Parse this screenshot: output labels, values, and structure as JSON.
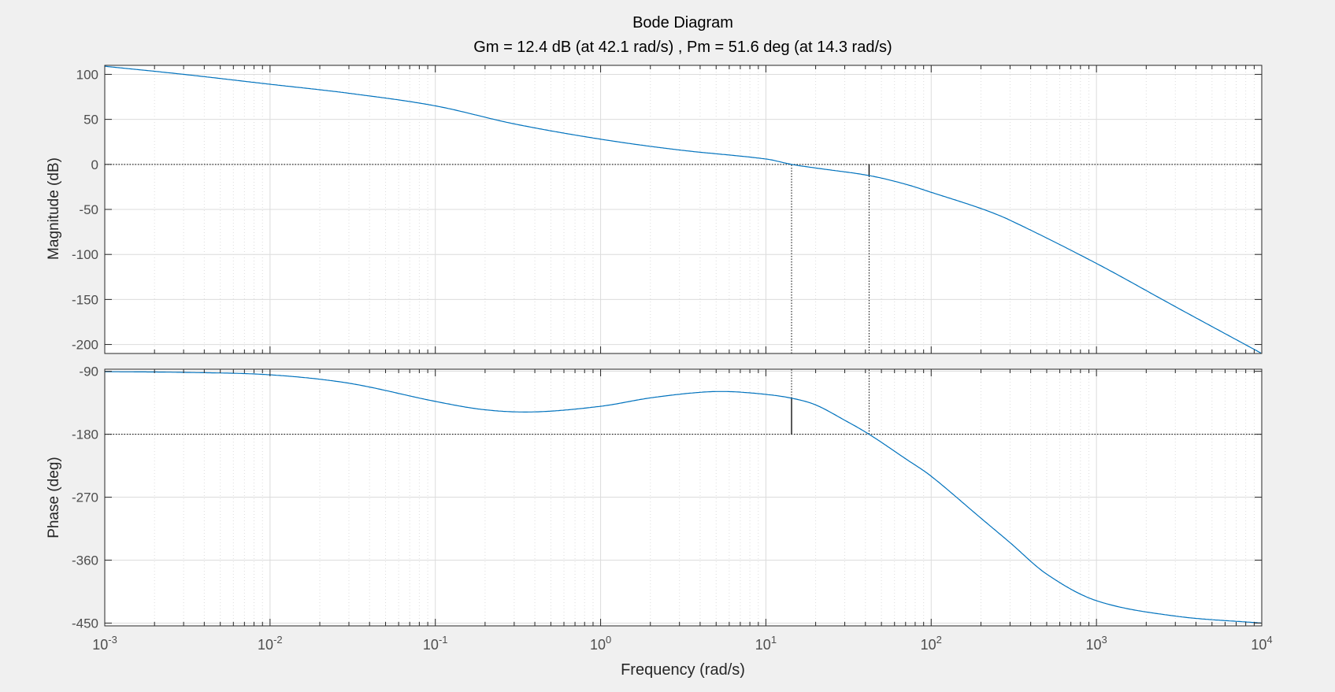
{
  "title": "Bode Diagram",
  "subtitle": "Gm = 12.4 dB (at 42.1 rad/s) ,  Pm = 51.6 deg (at 14.3 rad/s)",
  "colors": {
    "curve": "#0072bd",
    "axis": "#262626",
    "grid": "#dcdcdc",
    "tick_text": "#4d4d4d",
    "background": "#f0f0f0",
    "plot_bg": "#ffffff"
  },
  "chart_data": [
    {
      "type": "line",
      "panel": "magnitude",
      "ylabel": "Magnitude (dB)",
      "xscale": "log",
      "xlim": [
        0.001,
        10000
      ],
      "ylim": [
        -210,
        110
      ],
      "yticks": [
        100,
        50,
        0,
        -50,
        -100,
        -150,
        -200
      ],
      "ytick_labels": [
        "100",
        "50",
        "0",
        "-50",
        "-100",
        "-150",
        "-200"
      ],
      "grid": true,
      "reference_line": {
        "y": 0,
        "style": "dotted"
      },
      "markers": [
        {
          "x": 14.3,
          "from": -210,
          "to": 0,
          "style": "dotted"
        },
        {
          "x": 42.1,
          "from": -12.4,
          "to": 0,
          "style": "solid"
        },
        {
          "x": 42.1,
          "from": -210,
          "to": -12.4,
          "style": "dotted"
        }
      ],
      "series": [
        {
          "x": [
            0.001,
            0.003,
            0.01,
            0.03,
            0.1,
            0.3,
            1,
            3,
            10,
            14.3,
            20,
            42.1,
            70,
            100,
            200,
            300,
            1000,
            3000,
            10000
          ],
          "y": [
            109,
            100,
            89,
            79,
            65,
            45,
            28,
            16,
            6,
            0,
            -4,
            -12.4,
            -22,
            -31,
            -49,
            -62,
            -110,
            -158,
            -210
          ]
        }
      ]
    },
    {
      "type": "line",
      "panel": "phase",
      "ylabel": "Phase (deg)",
      "xlabel": "Frequency  (rad/s)",
      "xscale": "log",
      "xlim": [
        0.001,
        10000
      ],
      "ylim": [
        -454,
        -87
      ],
      "yticks": [
        -90,
        -180,
        -270,
        -360,
        -450
      ],
      "ytick_labels": [
        "-90",
        "-180",
        "-270",
        "-360",
        "-450"
      ],
      "xticks": [
        0.001,
        0.01,
        0.1,
        1,
        10,
        100,
        1000,
        10000
      ],
      "xtick_labels": [
        {
          "base": "10",
          "exp": "-3"
        },
        {
          "base": "10",
          "exp": "-2"
        },
        {
          "base": "10",
          "exp": "-1"
        },
        {
          "base": "10",
          "exp": "0"
        },
        {
          "base": "10",
          "exp": "1"
        },
        {
          "base": "10",
          "exp": "2"
        },
        {
          "base": "10",
          "exp": "3"
        },
        {
          "base": "10",
          "exp": "4"
        }
      ],
      "grid": true,
      "reference_line": {
        "y": -180,
        "style": "dotted"
      },
      "markers": [
        {
          "x": 14.3,
          "from": -180,
          "to": -128.4,
          "style": "solid"
        },
        {
          "x": 14.3,
          "from": -128.4,
          "to": -87,
          "style": "dotted"
        },
        {
          "x": 42.1,
          "from": -180,
          "to": -87,
          "style": "dotted"
        }
      ],
      "series": [
        {
          "x": [
            0.001,
            0.003,
            0.01,
            0.03,
            0.1,
            0.2,
            0.4,
            1,
            2,
            4,
            6,
            10,
            14.3,
            20,
            30,
            42.1,
            70,
            100,
            200,
            300,
            500,
            1000,
            3000,
            10000
          ],
          "y": [
            -90.5,
            -91.5,
            -95,
            -107,
            -133,
            -145,
            -148,
            -140,
            -128,
            -120,
            -119,
            -123,
            -128.4,
            -138,
            -160,
            -180,
            -215,
            -240,
            -300,
            -335,
            -380,
            -418,
            -440,
            -450
          ]
        }
      ]
    }
  ]
}
